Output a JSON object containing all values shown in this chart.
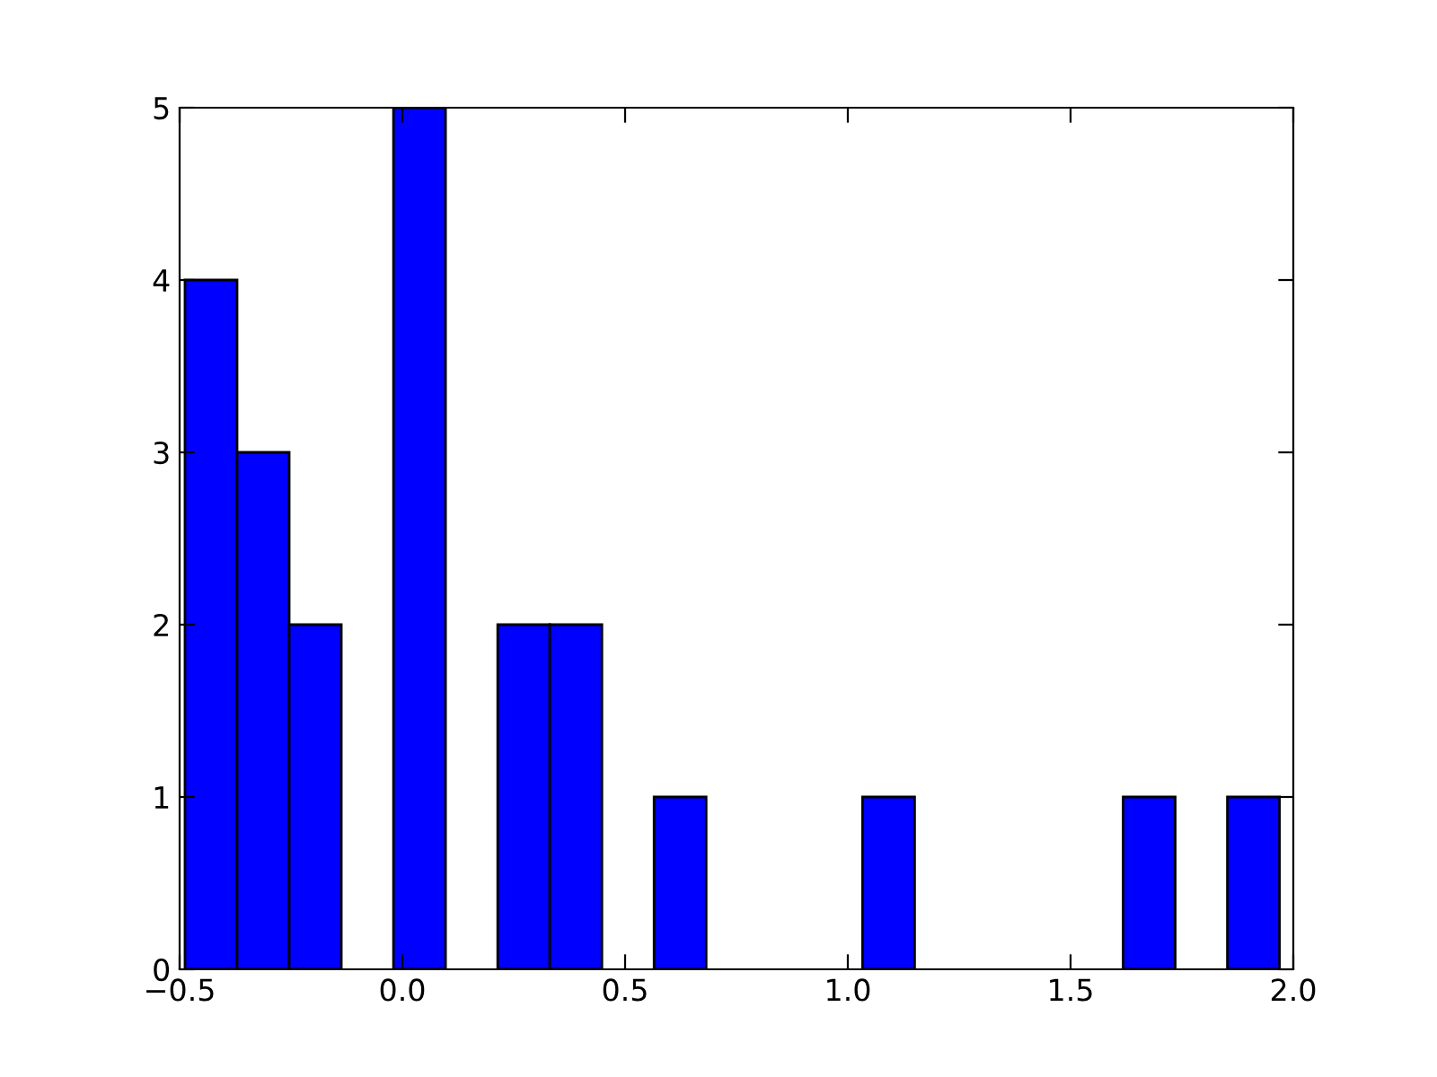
{
  "chart_data": {
    "type": "histogram",
    "bins": [
      -0.488,
      -0.371,
      -0.254,
      -0.137,
      -0.02,
      0.097,
      0.214,
      0.331,
      0.448,
      0.565,
      0.682,
      0.799,
      0.916,
      1.033,
      1.15,
      1.267,
      1.384,
      1.501,
      1.618,
      1.735,
      1.852,
      1.969
    ],
    "values": [
      4,
      3,
      2,
      0,
      5,
      0,
      2,
      2,
      0,
      1,
      0,
      0,
      0,
      1,
      0,
      0,
      0,
      0,
      1,
      0,
      1
    ],
    "color": "#0000ff",
    "xlim": [
      -0.5,
      2.0
    ],
    "xticks": [
      {
        "value": -0.5,
        "label": "−0.5"
      },
      {
        "value": 0.0,
        "label": "0.0"
      },
      {
        "value": 0.5,
        "label": "0.5"
      },
      {
        "value": 1.0,
        "label": "1.0"
      },
      {
        "value": 1.5,
        "label": "1.5"
      },
      {
        "value": 2.0,
        "label": "2.0"
      }
    ],
    "ylim": [
      0,
      5
    ],
    "yticks": [
      0,
      1,
      2,
      3,
      4,
      5
    ]
  }
}
